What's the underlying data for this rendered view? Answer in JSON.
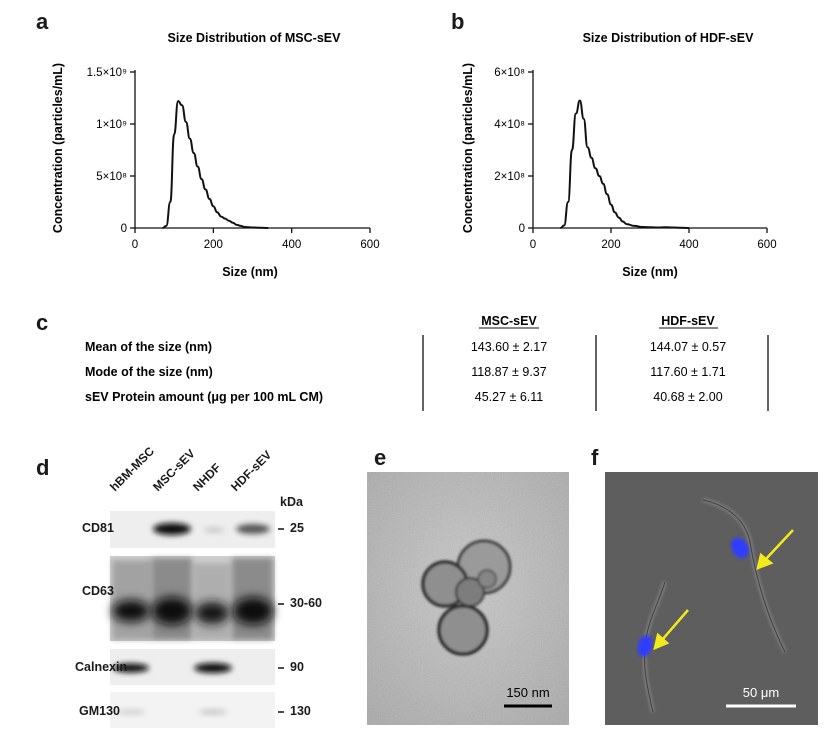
{
  "panels": {
    "a": "a",
    "b": "b",
    "c": "c",
    "d": "d",
    "e": "e",
    "f": "f"
  },
  "chart_data": [
    {
      "type": "line",
      "title": "Size Distribution of MSC-sEV",
      "xlabel": "Size (nm)",
      "ylabel": "Concentration (particles/mL)",
      "xlim": [
        0,
        600
      ],
      "ylim": [
        0,
        1500000000
      ],
      "xticks": [
        "0",
        "200",
        "400",
        "600"
      ],
      "yticks": [
        "0",
        "5×10⁸",
        "1×10⁹",
        "1.5×10⁹"
      ],
      "ytick_values": [
        0,
        500000000,
        1000000000,
        1500000000
      ],
      "grid": false,
      "x": [
        70,
        80,
        90,
        100,
        110,
        120,
        130,
        140,
        150,
        160,
        170,
        180,
        190,
        200,
        210,
        220,
        230,
        240,
        250,
        260,
        270,
        280,
        290,
        300,
        320,
        340
      ],
      "values": [
        0,
        20000000,
        250000000,
        900000000,
        1220000000,
        1180000000,
        1020000000,
        860000000,
        720000000,
        590000000,
        470000000,
        370000000,
        280000000,
        210000000,
        150000000,
        110000000,
        90000000,
        70000000,
        50000000,
        30000000,
        20000000,
        10000000,
        8000000,
        5000000,
        2000000,
        0
      ]
    },
    {
      "type": "line",
      "title": "Size Distribution of HDF-sEV",
      "xlabel": "Size (nm)",
      "ylabel": "Concentration (particles/mL)",
      "xlim": [
        0,
        600
      ],
      "ylim": [
        0,
        600000000
      ],
      "xticks": [
        "0",
        "200",
        "400",
        "600"
      ],
      "yticks": [
        "0",
        "2×10⁸",
        "4×10⁸",
        "6×10⁸"
      ],
      "ytick_values": [
        0,
        200000000,
        400000000,
        600000000
      ],
      "grid": false,
      "x": [
        70,
        80,
        90,
        100,
        110,
        120,
        130,
        140,
        150,
        160,
        170,
        180,
        190,
        200,
        210,
        220,
        230,
        240,
        260,
        280,
        300,
        320,
        340,
        360,
        380,
        400
      ],
      "values": [
        0,
        10000000,
        100000000,
        300000000,
        440000000,
        490000000,
        420000000,
        310000000,
        270000000,
        230000000,
        200000000,
        170000000,
        130000000,
        90000000,
        60000000,
        40000000,
        25000000,
        15000000,
        8000000,
        4000000,
        3000000,
        2000000,
        3000000,
        2000000,
        1000000,
        0
      ]
    }
  ],
  "table": {
    "headers": [
      "MSC-sEV",
      "HDF-sEV"
    ],
    "rows": [
      {
        "label": "Mean of the size (nm)",
        "msc": "143.60 ± 2.17",
        "hdf": "144.07 ± 0.57"
      },
      {
        "label": "Mode of the size (nm)",
        "msc": "118.87 ± 9.37",
        "hdf": "117.60 ± 1.71"
      },
      {
        "label": "sEV Protein amount (μg per 100 mL CM)",
        "msc": "45.27 ± 6.11",
        "hdf": "40.68 ± 2.00"
      }
    ]
  },
  "western_blot": {
    "lanes": [
      "hBM-MSC",
      "MSC-sEV",
      "NHDF",
      "HDF-sEV"
    ],
    "kda_header": "kDa",
    "blots": [
      {
        "name": "CD81",
        "kda": "25",
        "intensity": [
          0.02,
          0.95,
          0.08,
          0.6
        ]
      },
      {
        "name": "CD63",
        "kda": "30-60",
        "intensity": [
          0.85,
          0.95,
          0.85,
          0.95
        ]
      },
      {
        "name": "Calnexin",
        "kda": "90",
        "intensity": [
          0.9,
          0.0,
          0.95,
          0.0
        ]
      },
      {
        "name": "GM130",
        "kda": "130",
        "intensity": [
          0.05,
          0.0,
          0.1,
          0.0
        ]
      }
    ]
  },
  "tem": {
    "scalebar": "150 nm"
  },
  "fluorescence": {
    "scalebar": "50 μm",
    "arrow_color": "#f3ea1c",
    "nucleus_color": "#2e3cff"
  }
}
